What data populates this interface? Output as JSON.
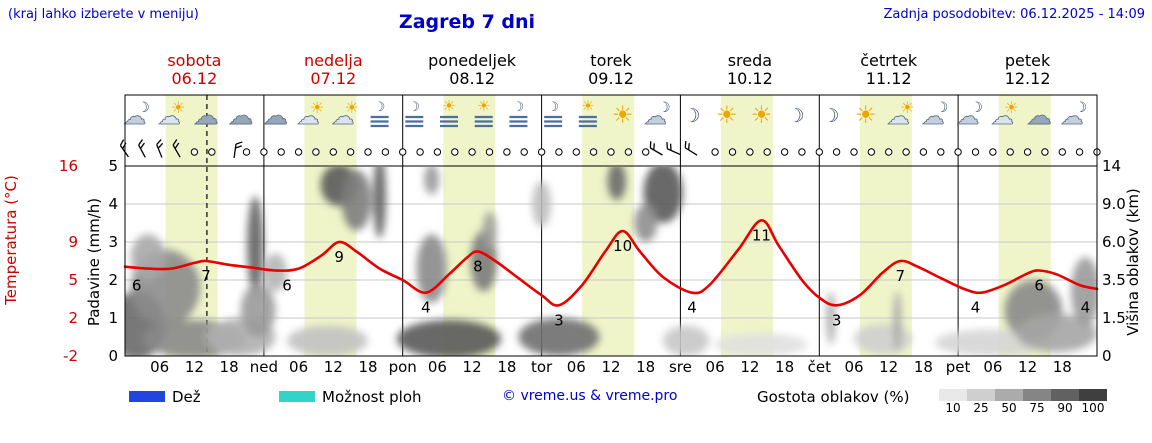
{
  "header": {
    "menu_hint": "(kraj lahko izberete v meniju)",
    "title": "Zagreb 7 dni",
    "last_update": "Zadnja posodobitev: 06.12.2025 - 14:09"
  },
  "styles": {
    "accent_blue": "#0000cc",
    "weekend_red": "#cc0000",
    "curve_red": "#e80000",
    "band_fill": "#eff5c9",
    "grid_gray": "#c9c9c9"
  },
  "days": [
    {
      "name": "sobota",
      "date": "06.12",
      "highlight": true
    },
    {
      "name": "nedelja",
      "date": "07.12",
      "highlight": true
    },
    {
      "name": "ponedeljek",
      "date": "08.12",
      "highlight": false
    },
    {
      "name": "torek",
      "date": "09.12",
      "highlight": false
    },
    {
      "name": "sreda",
      "date": "10.12",
      "highlight": false
    },
    {
      "name": "četrtek",
      "date": "11.12",
      "highlight": false
    },
    {
      "name": "petek",
      "date": "12.12",
      "highlight": false
    }
  ],
  "left_axis": {
    "temperature_label": "Temperatura (°C)",
    "precip_label": "Padavine (mm/h)",
    "temp_ticks": [
      {
        "value": "16",
        "pad": 5
      },
      {
        "value": "9",
        "pad": 3
      },
      {
        "value": "5",
        "pad": 2
      },
      {
        "value": "2",
        "pad": 1
      },
      {
        "value": "-2",
        "pad": 0
      }
    ],
    "precip_ticks": [
      {
        "value": "5",
        "pad": 5
      },
      {
        "value": "4",
        "pad": 4
      },
      {
        "value": "3",
        "pad": 3
      },
      {
        "value": "2",
        "pad": 2
      },
      {
        "value": "1",
        "pad": 1
      },
      {
        "value": "0",
        "pad": 0
      }
    ]
  },
  "right_axis": {
    "label": "Višina oblakov (km)",
    "ticks": [
      {
        "value": "14",
        "pad": 5
      },
      {
        "value": "9.0",
        "pad": 4
      },
      {
        "value": "6.0",
        "pad": 3
      },
      {
        "value": "3.5",
        "pad": 2
      },
      {
        "value": "1.5",
        "pad": 1
      },
      {
        "value": "0",
        "pad": 0
      }
    ]
  },
  "xaxis": {
    "hour_ticks": [
      "06",
      "12",
      "18"
    ],
    "day_abbrevs": [
      "ned",
      "pon",
      "tor",
      "sre",
      "čet",
      "pet"
    ]
  },
  "legend": {
    "rain_label": "Dež",
    "rain_color": "#2244e0",
    "showers_label": "Možnost ploh",
    "showers_color": "#30d5c8",
    "copyright": "© vreme.us & vreme.pro",
    "cloud_density_label": "Gostota oblakov (%)",
    "cloud_scale": [
      {
        "pct": "10",
        "color": "#e9e9e9"
      },
      {
        "pct": "25",
        "color": "#cfcfcf"
      },
      {
        "pct": "50",
        "color": "#ababab"
      },
      {
        "pct": "75",
        "color": "#858585"
      },
      {
        "pct": "90",
        "color": "#616161"
      },
      {
        "pct": "100",
        "color": "#3f3f3f"
      }
    ]
  },
  "chart_data": {
    "type": "line",
    "title": "Zagreb 7 dni",
    "x_unit": "hours",
    "x_range": [
      0,
      168
    ],
    "now_hour": 14.15,
    "pad_range": [
      0,
      5
    ],
    "temp_to_pad_anchors": [
      [
        -2,
        0
      ],
      [
        2,
        1
      ],
      [
        5,
        2
      ],
      [
        9,
        3
      ],
      [
        16,
        5
      ]
    ],
    "day_band_hours": [
      [
        7,
        16
      ],
      [
        31,
        40
      ],
      [
        55,
        64
      ],
      [
        79,
        88
      ],
      [
        103,
        112
      ],
      [
        127,
        136
      ],
      [
        151,
        160
      ]
    ],
    "temperature": {
      "name": "Temperatura",
      "unit": "°C",
      "points": [
        [
          0,
          6.4
        ],
        [
          4,
          6.2
        ],
        [
          8,
          6.2
        ],
        [
          12,
          6.8
        ],
        [
          14,
          7.0
        ],
        [
          18,
          6.6
        ],
        [
          22,
          6.3
        ],
        [
          26,
          6.0
        ],
        [
          30,
          6.2
        ],
        [
          34,
          7.6
        ],
        [
          37,
          9.0
        ],
        [
          40,
          8.0
        ],
        [
          44,
          6.2
        ],
        [
          48,
          5.0
        ],
        [
          52,
          4.0
        ],
        [
          56,
          5.6
        ],
        [
          59,
          7.3
        ],
        [
          61,
          8.0
        ],
        [
          64,
          7.0
        ],
        [
          68,
          5.2
        ],
        [
          72,
          3.8
        ],
        [
          75,
          3.0
        ],
        [
          79,
          4.6
        ],
        [
          83,
          8.0
        ],
        [
          86,
          10.0
        ],
        [
          89,
          8.0
        ],
        [
          93,
          5.3
        ],
        [
          98,
          4.0
        ],
        [
          101,
          4.6
        ],
        [
          106,
          8.2
        ],
        [
          110,
          11.0
        ],
        [
          113,
          8.6
        ],
        [
          117,
          5.0
        ],
        [
          120,
          3.6
        ],
        [
          123,
          3.0
        ],
        [
          127,
          3.8
        ],
        [
          131,
          5.8
        ],
        [
          134,
          7.0
        ],
        [
          137,
          6.4
        ],
        [
          141,
          5.2
        ],
        [
          145,
          4.3
        ],
        [
          148,
          4.0
        ],
        [
          152,
          4.6
        ],
        [
          156,
          5.7
        ],
        [
          158,
          6.0
        ],
        [
          161,
          5.6
        ],
        [
          165,
          4.6
        ],
        [
          168,
          4.3
        ]
      ],
      "labels": [
        [
          2,
          6
        ],
        [
          14,
          7
        ],
        [
          28,
          6
        ],
        [
          37,
          9
        ],
        [
          52,
          4
        ],
        [
          61,
          8
        ],
        [
          75,
          3
        ],
        [
          86,
          10
        ],
        [
          98,
          4
        ],
        [
          110,
          11
        ],
        [
          123,
          3
        ],
        [
          134,
          7
        ],
        [
          147,
          4
        ],
        [
          158,
          6
        ],
        [
          166,
          4
        ]
      ]
    },
    "cloud_blobs": [
      [
        2,
        0.8,
        5,
        0.9,
        "#6a6a6a"
      ],
      [
        7,
        1.8,
        6,
        1.0,
        "#8c8c8c"
      ],
      [
        4,
        2.6,
        3,
        0.6,
        "#a8a8a8"
      ],
      [
        12,
        0.45,
        9,
        0.5,
        "#8a8a8a"
      ],
      [
        20,
        0.5,
        6,
        0.5,
        "#b0b0b0"
      ],
      [
        22.5,
        2.9,
        1.4,
        1.3,
        "#636363"
      ],
      [
        23,
        1.2,
        3,
        0.7,
        "#9a9a9a"
      ],
      [
        26,
        2.2,
        2,
        0.5,
        "#b5b5b5"
      ],
      [
        37,
        4.5,
        3.2,
        0.55,
        "#5a5a5a"
      ],
      [
        40,
        4.1,
        2.6,
        0.8,
        "#7d7d7d"
      ],
      [
        44,
        4.2,
        1.1,
        1.1,
        "#5f5f5f"
      ],
      [
        35,
        0.4,
        7,
        0.4,
        "#c2c2c2"
      ],
      [
        53,
        2.3,
        2.6,
        0.9,
        "#8a8a8a"
      ],
      [
        53,
        4.65,
        1.3,
        0.4,
        "#9a9a9a"
      ],
      [
        56,
        0.45,
        9,
        0.5,
        "#5a5a5a"
      ],
      [
        62,
        2.5,
        2.3,
        0.8,
        "#7a7a7a"
      ],
      [
        63,
        3.3,
        1.2,
        0.5,
        "#9f9f9f"
      ],
      [
        75,
        0.5,
        7,
        0.5,
        "#6f6f6f"
      ],
      [
        72,
        4.0,
        1.6,
        0.6,
        "#bdbdbd"
      ],
      [
        85,
        4.6,
        1.6,
        0.5,
        "#6a6a6a"
      ],
      [
        93,
        4.3,
        3.4,
        0.8,
        "#5a5a5a"
      ],
      [
        90,
        3.5,
        2.0,
        0.5,
        "#8f8f8f"
      ],
      [
        97,
        0.4,
        4,
        0.4,
        "#c7c7c7"
      ],
      [
        110,
        0.3,
        8,
        0.3,
        "#e0e0e0"
      ],
      [
        122,
        1.0,
        0.8,
        0.7,
        "#ababab"
      ],
      [
        131,
        0.45,
        5,
        0.4,
        "#cfcfcf"
      ],
      [
        133.5,
        0.9,
        0.7,
        0.8,
        "#a5a5a5"
      ],
      [
        150,
        0.35,
        10,
        0.35,
        "#d5d5d5"
      ],
      [
        157,
        1.2,
        5,
        0.8,
        "#8a8a8a"
      ],
      [
        161,
        0.6,
        7,
        0.5,
        "#a5a5a5"
      ],
      [
        166,
        1.7,
        2.5,
        0.9,
        "#9a9a9a"
      ]
    ],
    "icons": {
      "start_hour": 2,
      "step_hours": 6,
      "types": [
        "cloud-moon",
        "sun-cloud",
        "cloud",
        "cloud",
        "cloud",
        "sun-cloud",
        "sun-cloud",
        "fog-moon",
        "fog-moon",
        "fog-sun",
        "fog-sun",
        "fog-moon",
        "fog-moon",
        "fog-sun",
        "sun",
        "cloud-moon",
        "moon",
        "sun",
        "sun",
        "moon",
        "moon",
        "sun",
        "sun-cloud",
        "cloud-moon",
        "cloud-moon",
        "sun-cloud",
        "cloud",
        "cloud-moon"
      ]
    },
    "wind": {
      "step_hours": 3,
      "calm_symbol": "circle",
      "barbs": [
        [
          0,
          -35
        ],
        [
          3,
          -28
        ],
        [
          6,
          -22
        ],
        [
          9,
          -30
        ],
        [
          19,
          8
        ],
        [
          92,
          -60
        ],
        [
          95,
          -66
        ],
        [
          98,
          -58
        ]
      ]
    }
  }
}
